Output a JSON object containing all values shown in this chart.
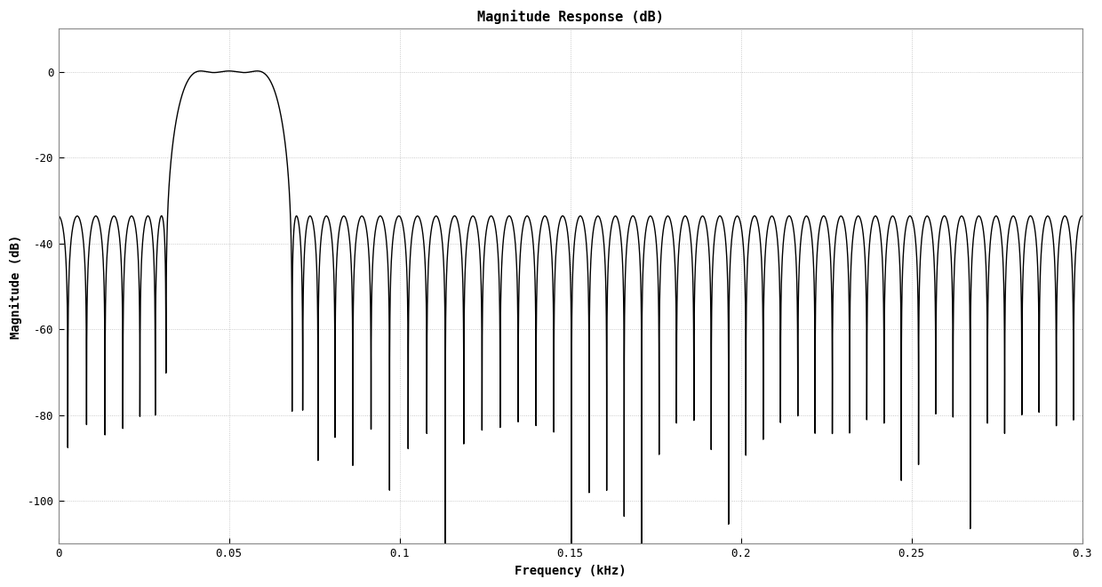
{
  "title": "Magnitude Response (dB)",
  "xlabel": "Frequency (kHz)",
  "ylabel": "Magnitude (dB)",
  "xlim": [
    0,
    0.3
  ],
  "ylim": [
    -110,
    10
  ],
  "yticks": [
    0,
    -20,
    -40,
    -60,
    -80,
    -100
  ],
  "xticks": [
    0,
    0.05,
    0.1,
    0.15,
    0.2,
    0.25,
    0.3
  ],
  "line_color": "#000000",
  "bg_color": "#ffffff",
  "grid_color": "#aaaaaa",
  "title_fontsize": 11,
  "label_fontsize": 10,
  "tick_fontsize": 9,
  "fs_khz": 0.6,
  "passband_low": 0.04,
  "passband_high": 0.06,
  "stopband_atten": 3.162e-06,
  "num_taps": 251
}
